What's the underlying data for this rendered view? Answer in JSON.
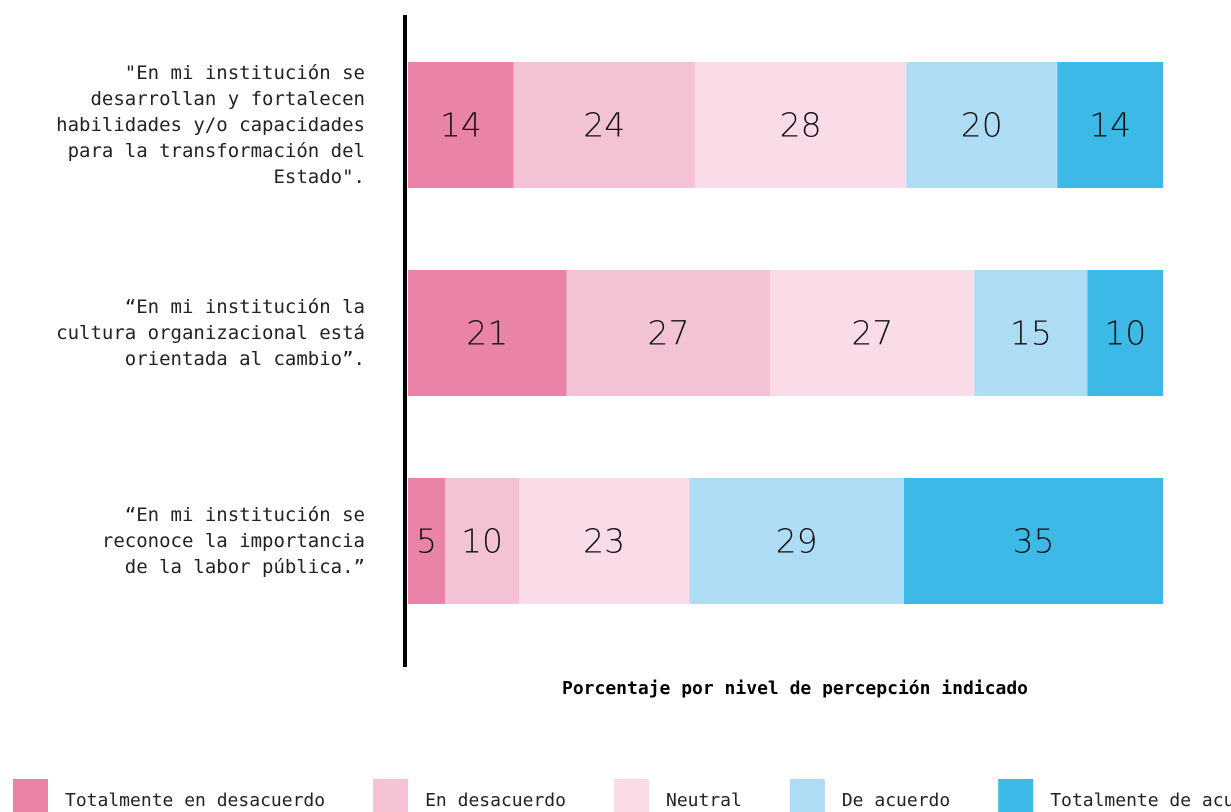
{
  "chart_data": {
    "type": "bar",
    "orientation": "horizontal",
    "stacked": true,
    "categories": [
      "\"En mi institución se\ndesarrollan y fortalecen\nhabilidades y/o capacidades\npara la transformación del\nEstado\".",
      "“En mi institución la\ncultura organizacional está\norientada al cambio”.",
      "“En mi institución se\nreconoce la importancia\nde la labor pública.”"
    ],
    "series": [
      {
        "name": "Totalmente en desacuerdo",
        "color": "#ea83a8",
        "values": [
          14,
          21,
          5
        ]
      },
      {
        "name": "En desacuerdo",
        "color": "#f4c2d5",
        "values": [
          24,
          27,
          10
        ]
      },
      {
        "name": "Neutral",
        "color": "#f9dce7",
        "values": [
          28,
          27,
          23
        ]
      },
      {
        "name": "De acuerdo",
        "color": "#aedcf4",
        "values": [
          20,
          15,
          29
        ]
      },
      {
        "name": "Totalmente de acuerdo",
        "color": "#3db9e8",
        "values": [
          14,
          10,
          35
        ]
      }
    ],
    "xlabel": "Porcentaje por nivel de percepción indicado",
    "legend": "bottom"
  }
}
